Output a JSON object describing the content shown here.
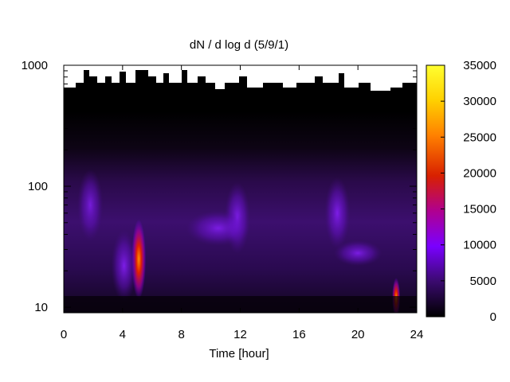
{
  "chart_data": {
    "type": "heatmap",
    "title": "dN / d log d (5/9/1)",
    "xlabel": "Time [hour]",
    "ylabel": "",
    "x_ticks": [
      "0",
      "4",
      "8",
      "12",
      "16",
      "20",
      "24"
    ],
    "x_tick_values": [
      0,
      4,
      8,
      12,
      16,
      20,
      24
    ],
    "y_ticks": [
      "10",
      "100",
      "1000"
    ],
    "y_tick_values": [
      10,
      100,
      1000
    ],
    "y_scale": "log",
    "xlim": [
      0,
      24
    ],
    "ylim": [
      9,
      1000
    ],
    "colorbar": {
      "ticks": [
        "0",
        "5000",
        "10000",
        "15000",
        "20000",
        "25000",
        "30000",
        "35000"
      ],
      "tick_values": [
        0,
        5000,
        10000,
        15000,
        20000,
        25000,
        30000,
        35000
      ],
      "range": [
        0,
        35000
      ],
      "colors": [
        "#000000",
        "#3a0a6e",
        "#7a00ff",
        "#b00090",
        "#d82000",
        "#ff8000",
        "#ffd000",
        "#ffff30"
      ]
    },
    "features": [
      {
        "time": 5.1,
        "diameter": 25,
        "value": 22000
      },
      {
        "time": 4.1,
        "diameter": 22,
        "value": 9000
      },
      {
        "time": 1.8,
        "diameter": 70,
        "value": 6500
      },
      {
        "time": 11.8,
        "diameter": 55,
        "value": 8500
      },
      {
        "time": 10.5,
        "diameter": 45,
        "value": 7500
      },
      {
        "time": 18.6,
        "diameter": 60,
        "value": 8500
      },
      {
        "time": 20.0,
        "diameter": 28,
        "value": 8000
      },
      {
        "time": 22.6,
        "diameter": 12,
        "value": 25000
      }
    ],
    "grid": false,
    "legend": "none"
  }
}
